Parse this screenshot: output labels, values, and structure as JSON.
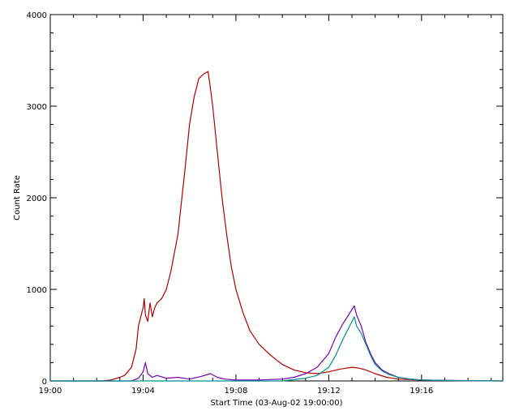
{
  "chart_data": {
    "type": "line",
    "title": "",
    "xlabel": "Start Time (03-Aug-02 19:00:00)",
    "ylabel": "Count Rate",
    "xlim_minutes": [
      0,
      19.5
    ],
    "ylim": [
      0,
      4000
    ],
    "x_ticks": [
      {
        "minutes": 0,
        "label": "19:00"
      },
      {
        "minutes": 4,
        "label": "19:04"
      },
      {
        "minutes": 8,
        "label": "19:08"
      },
      {
        "minutes": 12,
        "label": "19:12"
      },
      {
        "minutes": 16,
        "label": "19:16"
      }
    ],
    "y_ticks": [
      {
        "value": 0,
        "label": "0"
      },
      {
        "value": 1000,
        "label": "1000"
      },
      {
        "value": 2000,
        "label": "2000"
      },
      {
        "value": 3000,
        "label": "3000"
      },
      {
        "value": 4000,
        "label": "4000"
      }
    ],
    "grid": false,
    "legend": "none",
    "series": [
      {
        "color": "#b00000",
        "x_minutes": [
          0,
          2.2,
          2.6,
          3.0,
          3.2,
          3.5,
          3.7,
          3.8,
          3.9,
          4.0,
          4.05,
          4.1,
          4.2,
          4.3,
          4.4,
          4.5,
          4.6,
          4.8,
          5.0,
          5.2,
          5.5,
          5.8,
          6.0,
          6.2,
          6.4,
          6.6,
          6.8,
          6.9,
          7.0,
          7.2,
          7.4,
          7.6,
          7.8,
          8.0,
          8.3,
          8.6,
          9.0,
          9.5,
          10.0,
          10.5,
          11.0,
          11.5,
          12.0,
          12.5,
          13.0,
          13.3,
          13.6,
          14.0,
          14.5,
          15.0,
          16.0,
          17.0,
          18.0,
          19.5
        ],
        "y": [
          0,
          0,
          10,
          40,
          60,
          150,
          350,
          600,
          700,
          800,
          900,
          720,
          650,
          850,
          700,
          800,
          850,
          900,
          1000,
          1200,
          1600,
          2300,
          2800,
          3100,
          3300,
          3350,
          3380,
          3200,
          3000,
          2500,
          2000,
          1600,
          1250,
          1000,
          750,
          550,
          400,
          280,
          180,
          120,
          90,
          80,
          100,
          130,
          150,
          140,
          120,
          80,
          40,
          20,
          10,
          5,
          2,
          0
        ]
      },
      {
        "color": "#7a00b5",
        "x_minutes": [
          0,
          3.5,
          3.8,
          4.0,
          4.1,
          4.2,
          4.4,
          4.6,
          5.0,
          5.5,
          6.0,
          6.5,
          6.9,
          7.2,
          7.5,
          8.0,
          9.0,
          10.0,
          10.5,
          11.0,
          11.5,
          12.0,
          12.3,
          12.6,
          12.8,
          13.0,
          13.1,
          13.2,
          13.4,
          13.6,
          13.8,
          14.0,
          14.3,
          14.6,
          15.0,
          15.5,
          16.0,
          17.0,
          19.5
        ],
        "y": [
          0,
          0,
          30,
          100,
          200,
          80,
          40,
          60,
          30,
          40,
          20,
          50,
          80,
          40,
          20,
          10,
          10,
          20,
          40,
          80,
          150,
          300,
          480,
          620,
          700,
          780,
          820,
          720,
          600,
          420,
          300,
          200,
          120,
          80,
          40,
          20,
          10,
          5,
          0
        ]
      },
      {
        "color": "#009090",
        "x_minutes": [
          0,
          10.0,
          11.0,
          11.5,
          12.0,
          12.3,
          12.6,
          12.8,
          13.0,
          13.1,
          13.2,
          13.4,
          13.6,
          13.8,
          14.0,
          14.3,
          14.6,
          15.0,
          15.5,
          16.0,
          17.0,
          19.5
        ],
        "y": [
          0,
          0,
          30,
          60,
          150,
          280,
          450,
          550,
          650,
          700,
          600,
          520,
          400,
          280,
          180,
          110,
          70,
          40,
          20,
          10,
          5,
          0
        ]
      }
    ]
  }
}
